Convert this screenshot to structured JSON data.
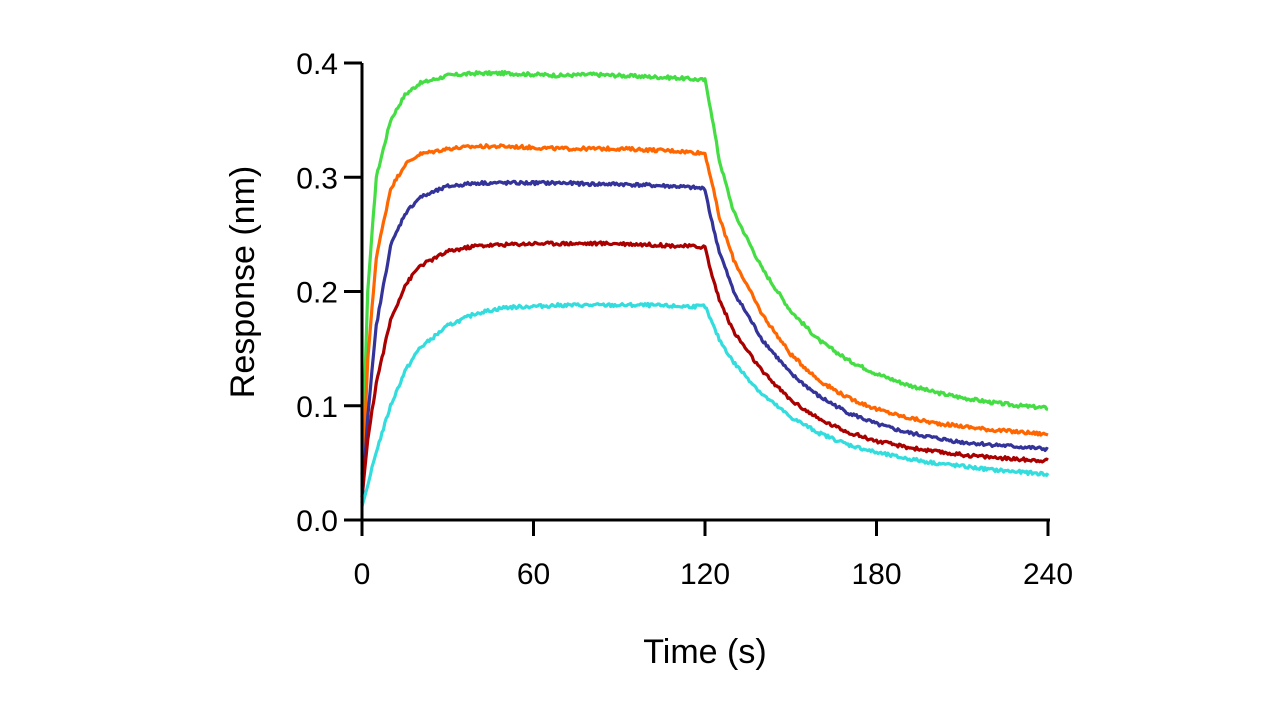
{
  "chart_data": {
    "type": "line",
    "xlabel": "Time (s)",
    "ylabel": "Response (nm)",
    "xlim": [
      0,
      240
    ],
    "ylim": [
      0,
      0.4
    ],
    "xticks": [
      0,
      60,
      120,
      180,
      240
    ],
    "xtick_labels": [
      "0",
      "60",
      "120",
      "180",
      "240"
    ],
    "yticks": [
      0,
      0.1,
      0.2,
      0.3,
      0.4
    ],
    "ytick_labels": [
      "0.0",
      "0.1",
      "0.2",
      "0.3",
      "0.4"
    ],
    "grid": false,
    "legend": "none",
    "x": [
      0,
      2,
      5,
      10,
      15,
      20,
      30,
      40,
      50,
      60,
      70,
      80,
      90,
      100,
      110,
      120,
      122,
      125,
      130,
      140,
      150,
      160,
      170,
      180,
      190,
      200,
      210,
      220,
      230,
      240
    ],
    "series": [
      {
        "color": "#44dd44",
        "values": [
          0.04,
          0.2,
          0.3,
          0.35,
          0.372,
          0.382,
          0.389,
          0.391,
          0.391,
          0.39,
          0.389,
          0.39,
          0.389,
          0.388,
          0.387,
          0.385,
          0.36,
          0.315,
          0.27,
          0.22,
          0.183,
          0.157,
          0.14,
          0.128,
          0.119,
          0.112,
          0.107,
          0.103,
          0.1,
          0.098
        ]
      },
      {
        "color": "#ff6600",
        "values": [
          0.02,
          0.14,
          0.23,
          0.29,
          0.311,
          0.32,
          0.325,
          0.327,
          0.327,
          0.326,
          0.325,
          0.325,
          0.325,
          0.324,
          0.323,
          0.321,
          0.3,
          0.265,
          0.228,
          0.18,
          0.145,
          0.122,
          0.107,
          0.097,
          0.09,
          0.085,
          0.082,
          0.079,
          0.077,
          0.075
        ]
      },
      {
        "color": "#333399",
        "values": [
          0.015,
          0.09,
          0.17,
          0.24,
          0.268,
          0.282,
          0.292,
          0.295,
          0.295,
          0.295,
          0.295,
          0.294,
          0.294,
          0.293,
          0.292,
          0.29,
          0.265,
          0.235,
          0.2,
          0.158,
          0.128,
          0.108,
          0.094,
          0.084,
          0.077,
          0.072,
          0.068,
          0.066,
          0.064,
          0.062
        ]
      },
      {
        "color": "#aa0000",
        "values": [
          0.02,
          0.07,
          0.12,
          0.175,
          0.205,
          0.222,
          0.235,
          0.24,
          0.241,
          0.242,
          0.242,
          0.242,
          0.242,
          0.241,
          0.24,
          0.239,
          0.218,
          0.193,
          0.165,
          0.13,
          0.105,
          0.088,
          0.077,
          0.069,
          0.064,
          0.06,
          0.057,
          0.055,
          0.053,
          0.052
        ]
      },
      {
        "color": "#33dddd",
        "values": [
          0.012,
          0.03,
          0.06,
          0.1,
          0.13,
          0.15,
          0.17,
          0.181,
          0.186,
          0.187,
          0.188,
          0.188,
          0.188,
          0.188,
          0.187,
          0.187,
          0.175,
          0.158,
          0.138,
          0.11,
          0.09,
          0.076,
          0.066,
          0.059,
          0.054,
          0.05,
          0.047,
          0.044,
          0.042,
          0.04
        ]
      }
    ]
  }
}
